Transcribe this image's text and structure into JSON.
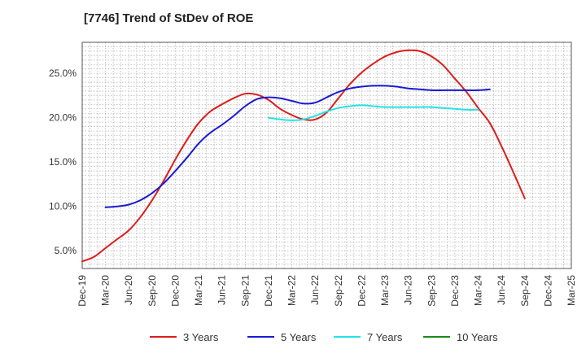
{
  "chart_data": {
    "type": "line",
    "title": "[7746]  Trend of StDev of ROE",
    "x_tick_labels": [
      "Dec-19",
      "Mar-20",
      "Jun-20",
      "Sep-20",
      "Dec-20",
      "Mar-21",
      "Jun-21",
      "Sep-21",
      "Dec-21",
      "Mar-22",
      "Jun-22",
      "Sep-22",
      "Dec-22",
      "Mar-23",
      "Jun-23",
      "Sep-23",
      "Dec-23",
      "Mar-24",
      "Jun-24",
      "Sep-24",
      "Dec-24",
      "Mar-25"
    ],
    "y_tick_labels": [
      "5.0%",
      "10.0%",
      "15.0%",
      "20.0%",
      "25.0%"
    ],
    "y_ticks": [
      5,
      10,
      15,
      20,
      25
    ],
    "ylim": [
      3,
      28.5
    ],
    "grid": true,
    "legend_position": "bottom",
    "series": [
      {
        "name": "3 Years",
        "color": "#dd1c1c",
        "x": [
          0,
          0.5,
          1,
          1.5,
          2,
          2.5,
          3,
          3.5,
          4,
          4.5,
          5,
          5.5,
          6,
          6.5,
          7,
          7.5,
          8,
          8.5,
          9,
          9.5,
          10,
          10.5,
          11,
          11.5,
          12,
          12.5,
          13,
          13.5,
          14,
          14.5,
          15,
          15.5,
          16,
          16.5,
          17,
          17.5,
          18,
          18.5,
          19,
          19.5,
          20
        ],
        "values": [
          3.8,
          4.3,
          5.3,
          6.3,
          7.3,
          8.8,
          10.7,
          12.9,
          15.3,
          17.5,
          19.4,
          20.7,
          21.5,
          22.2,
          22.7,
          22.6,
          22.0,
          21.0,
          20.3,
          19.8,
          19.8,
          20.6,
          22.2,
          23.8,
          25.1,
          26.1,
          26.9,
          27.4,
          27.6,
          27.5,
          26.9,
          25.9,
          24.4,
          22.9,
          21.1,
          19.4,
          16.8,
          13.9,
          10.9,
          null,
          null
        ]
      },
      {
        "name": "5 Years",
        "color": "#1a1ad2",
        "x": [
          1,
          1.5,
          2,
          2.5,
          3,
          3.5,
          4,
          4.5,
          5,
          5.5,
          6,
          6.5,
          7,
          7.5,
          8,
          8.5,
          9,
          9.5,
          10,
          10.5,
          11,
          11.5,
          12,
          12.5,
          13,
          13.5,
          14,
          14.5,
          15,
          15.5,
          16,
          16.5,
          17,
          17.5,
          18,
          18.5,
          19,
          19.5,
          20
        ],
        "values": [
          9.9,
          10.0,
          10.2,
          10.7,
          11.5,
          12.6,
          14.0,
          15.5,
          17.1,
          18.3,
          19.2,
          20.2,
          21.3,
          22.1,
          22.3,
          22.2,
          21.9,
          21.6,
          21.7,
          22.3,
          22.9,
          23.3,
          23.5,
          23.6,
          23.6,
          23.5,
          23.3,
          23.2,
          23.1,
          23.1,
          23.1,
          23.1,
          23.1,
          23.2,
          null,
          null,
          null,
          null,
          null
        ]
      },
      {
        "name": "7 Years",
        "color": "#22e4e4",
        "x": [
          8,
          8.5,
          9,
          9.5,
          10,
          10.5,
          11,
          11.5,
          12,
          12.5,
          13,
          13.5,
          14,
          14.5,
          15,
          15.5,
          16,
          16.5,
          17,
          17.5,
          18,
          18.5,
          19,
          19.5,
          20
        ],
        "values": [
          20.0,
          19.8,
          19.7,
          19.8,
          20.2,
          20.7,
          21.1,
          21.3,
          21.4,
          21.3,
          21.2,
          21.2,
          21.2,
          21.2,
          21.2,
          21.1,
          21.0,
          20.9,
          20.9,
          null,
          null,
          null,
          null,
          null,
          null
        ]
      },
      {
        "name": "10 Years",
        "color": "#1b8a1b",
        "x": [],
        "values": []
      }
    ]
  }
}
